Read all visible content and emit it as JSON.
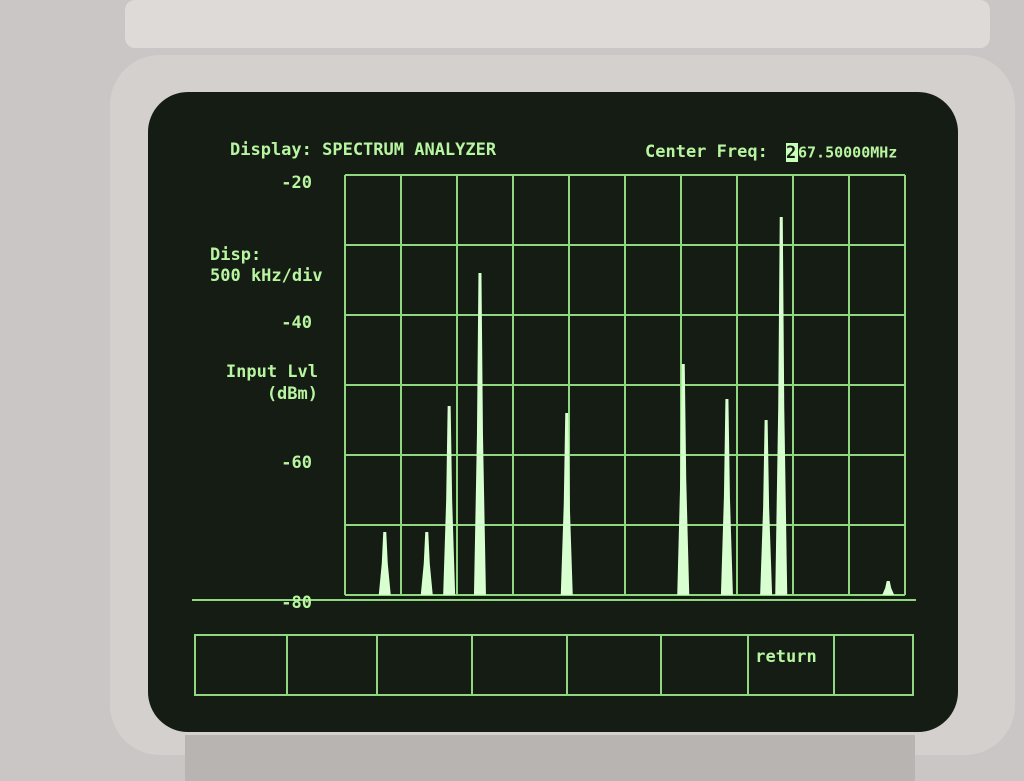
{
  "header": {
    "display": "Display: SPECTRUM ANALYZER",
    "center_label": "Center Freq:",
    "center_cursor": "2",
    "center_value": "67.50000MHz"
  },
  "side": {
    "disp_label": "Disp:",
    "disp_value": "500 kHz/div",
    "input_label": "Input Lvl",
    "input_unit": "(dBm)"
  },
  "softkeys": {
    "key8": "return"
  },
  "chart_data": {
    "type": "bar",
    "color": "#d8ffd0",
    "x": [
      0.71,
      1.46,
      1.86,
      2.41,
      3.96,
      6.04,
      6.82,
      7.52,
      7.79,
      9.7
    ],
    "values": [
      -71,
      -71,
      -53,
      -34,
      -54,
      -47,
      -52,
      -55,
      -26,
      -78
    ],
    "xlim": [
      0,
      10
    ],
    "ylim": [
      -80,
      -20
    ],
    "yticks": [
      -20,
      -40,
      -60,
      -80
    ],
    "grid": true
  }
}
